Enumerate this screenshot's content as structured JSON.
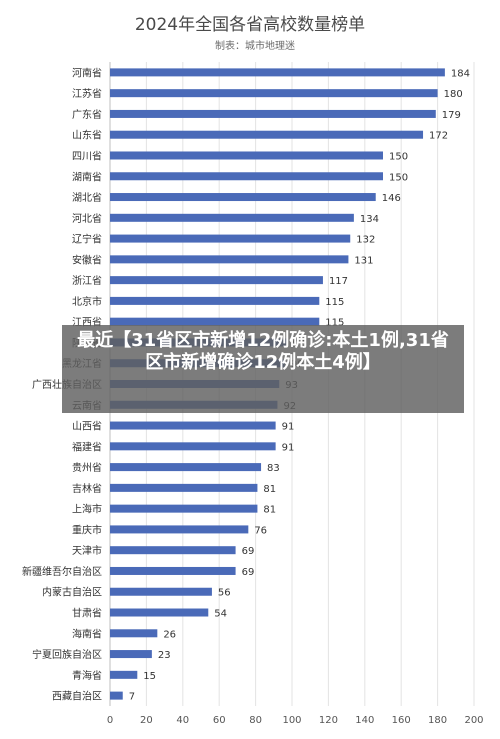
{
  "chart_data": {
    "type": "bar",
    "orientation": "horizontal",
    "title": "2024年全国各省高校数量榜单",
    "subtitle": "制表：城市地理迷",
    "categories": [
      "河南省",
      "江苏省",
      "广东省",
      "山东省",
      "四川省",
      "湖南省",
      "湖北省",
      "河北省",
      "辽宁省",
      "安徽省",
      "浙江省",
      "北京市",
      "江西省",
      "陕西省",
      "黑龙江省",
      "广西壮族自治区",
      "云南省",
      "山西省",
      "福建省",
      "贵州省",
      "吉林省",
      "上海市",
      "重庆市",
      "天津市",
      "新疆维吾尔自治区",
      "内蒙古自治区",
      "甘肃省",
      "海南省",
      "宁夏回族自治区",
      "青海省",
      "西藏自治区"
    ],
    "values": [
      184,
      180,
      179,
      172,
      150,
      150,
      146,
      134,
      132,
      131,
      117,
      115,
      115,
      97,
      96,
      93,
      92,
      91,
      91,
      83,
      81,
      81,
      76,
      69,
      69,
      56,
      54,
      26,
      23,
      15,
      7
    ],
    "xlim": [
      0,
      200
    ],
    "xticks": [
      0,
      20,
      40,
      60,
      80,
      100,
      120,
      140,
      160,
      180,
      200
    ],
    "bar_color": "#4a6ab8",
    "grid": "vertical",
    "legend": "none"
  },
  "overlay": {
    "text": "最近【31省区市新增12例确诊:本土1例,31省区市新增确诊12例本土4例】"
  }
}
